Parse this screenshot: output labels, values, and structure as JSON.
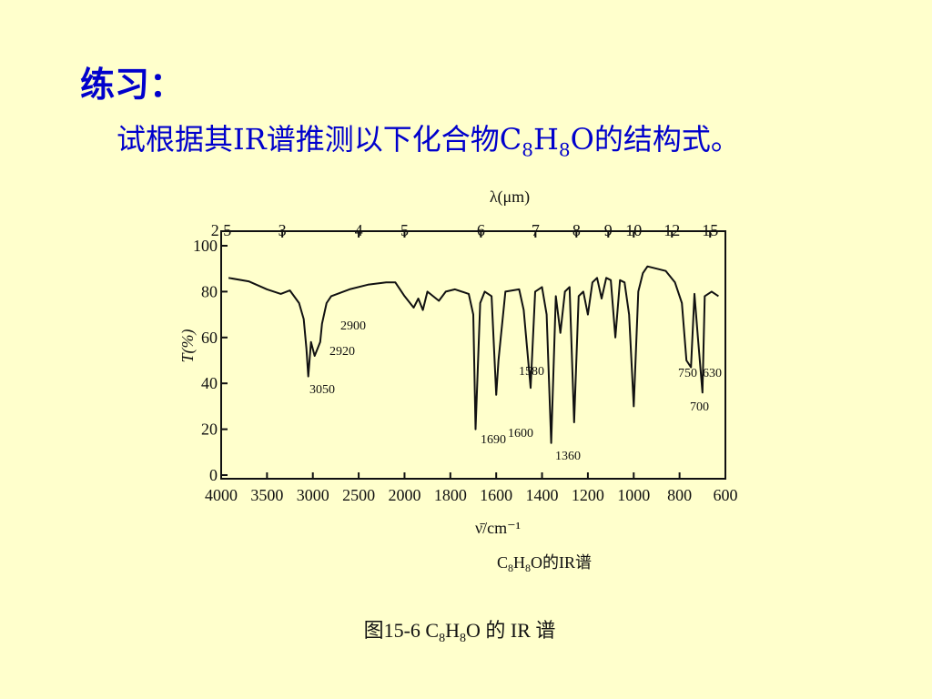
{
  "slide": {
    "heading": "练习：",
    "instruction": [
      "试根据其IR谱推测以下化合物C",
      "8",
      "H",
      "8",
      "O的结构式。"
    ]
  },
  "chart_data": {
    "type": "line",
    "top_axis_label": "λ(μm)",
    "top_ticks": [
      2.5,
      3,
      4,
      5,
      6,
      7,
      8,
      9,
      10,
      12,
      15
    ],
    "y_label": "T(%)",
    "x_label": "ν̄/cm⁻¹",
    "caption": [
      "C",
      "8",
      "H",
      "8",
      "O的IR谱"
    ],
    "figure_caption": [
      "图15-6   C",
      "8",
      "H",
      "8",
      "O 的 IR 谱"
    ],
    "xlim": [
      4000,
      600
    ],
    "xticks": [
      4000,
      3500,
      3000,
      2500,
      2000,
      1800,
      1600,
      1400,
      1200,
      1000,
      800,
      600
    ],
    "ylim": [
      0,
      100
    ],
    "yticks": [
      0,
      20,
      40,
      60,
      80,
      100
    ],
    "series": [
      {
        "color": "#111111",
        "x": [
          3920,
          3700,
          3500,
          3350,
          3250,
          3150,
          3100,
          3070,
          3050,
          3020,
          2980,
          2920,
          2900,
          2850,
          2800,
          2600,
          2400,
          2200,
          2100,
          2000,
          1960,
          1940,
          1920,
          1900,
          1850,
          1820,
          1780,
          1720,
          1700,
          1690,
          1670,
          1650,
          1620,
          1600,
          1590,
          1580,
          1560,
          1500,
          1480,
          1450,
          1430,
          1400,
          1380,
          1360,
          1340,
          1320,
          1300,
          1280,
          1260,
          1240,
          1220,
          1200,
          1180,
          1160,
          1140,
          1120,
          1100,
          1080,
          1060,
          1040,
          1020,
          1000,
          980,
          960,
          940,
          900,
          860,
          820,
          790,
          770,
          750,
          735,
          720,
          700,
          690,
          660,
          630
        ],
        "values": [
          86,
          84.5,
          81,
          79,
          80.5,
          75,
          68,
          55,
          43,
          58,
          52,
          58,
          66,
          75,
          78,
          81,
          83,
          84,
          84,
          78,
          73,
          77,
          72,
          80,
          76,
          80,
          81,
          79,
          70,
          20,
          75,
          80,
          78,
          35,
          50,
          60,
          80,
          81,
          72,
          38,
          80,
          82,
          70,
          14,
          78,
          62,
          80,
          82,
          23,
          78,
          80,
          70,
          84,
          86,
          77,
          86,
          85,
          60,
          85,
          84,
          70,
          30,
          80,
          88,
          91,
          90,
          89,
          84,
          75,
          50,
          47,
          79,
          60,
          36,
          78,
          80,
          78
        ]
      }
    ],
    "peak_labels": [
      "2900",
      "2920",
      "3050",
      "1690",
      "1600",
      "1580",
      "1360",
      "750",
      "630",
      "700"
    ]
  }
}
